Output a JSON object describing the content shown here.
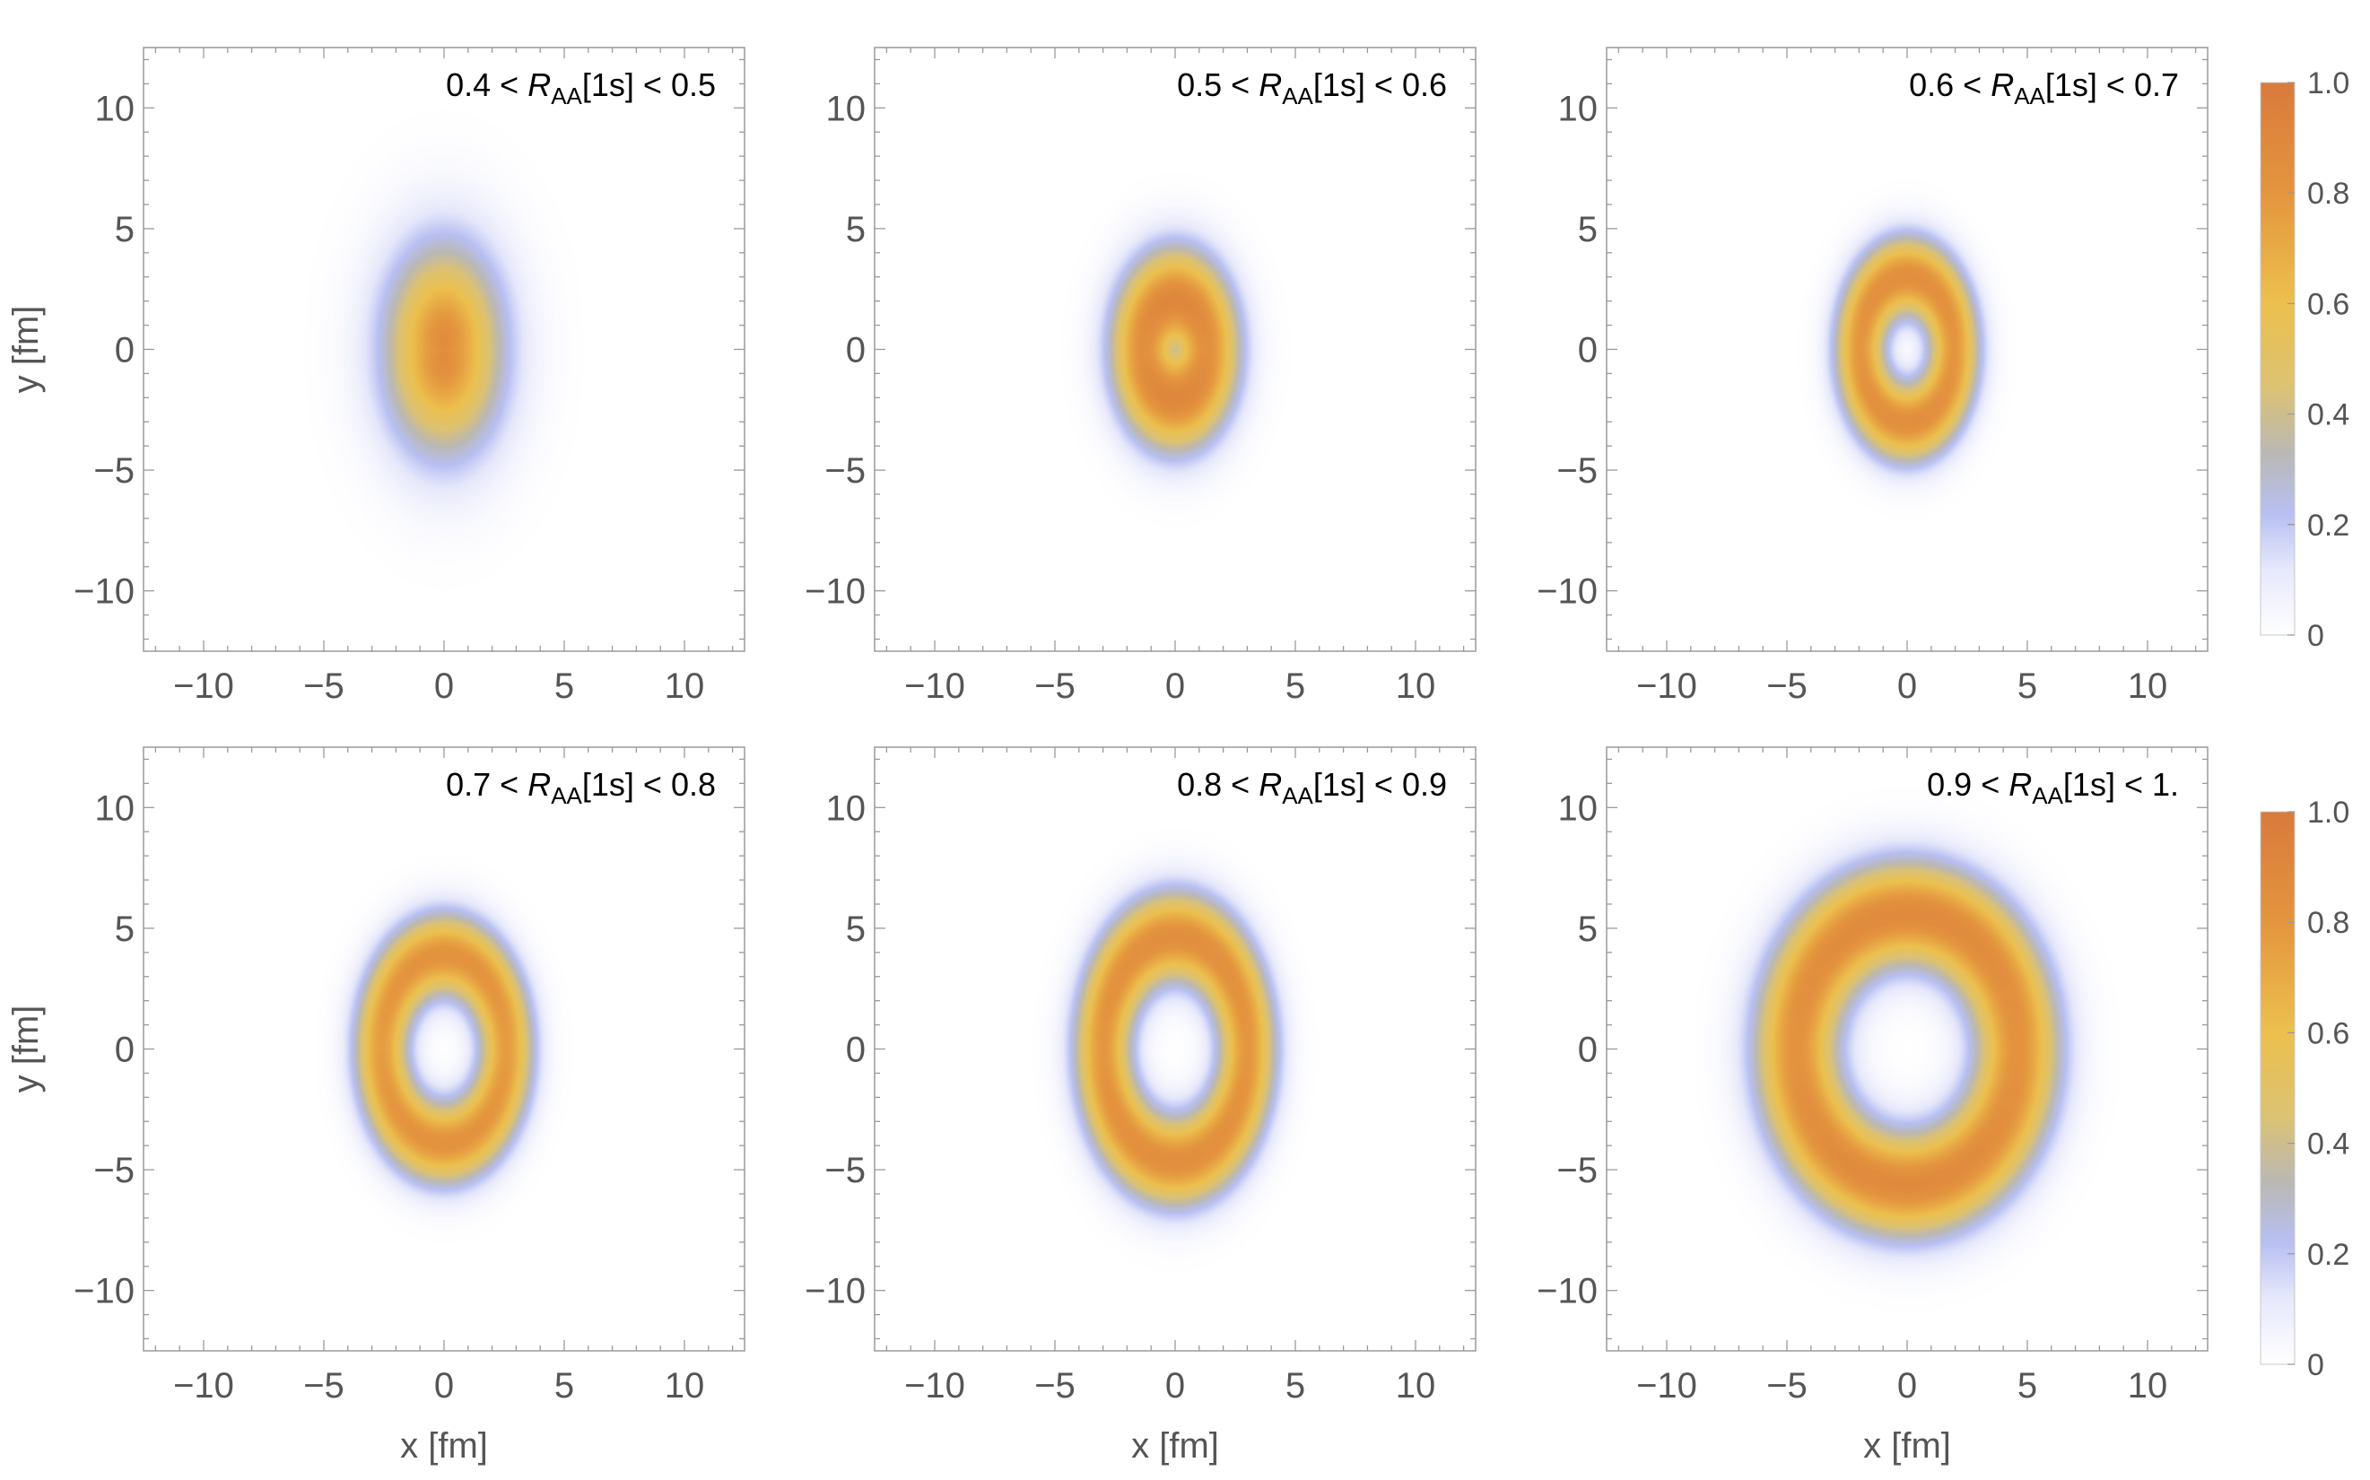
{
  "chart_data": {
    "type": "heatmap",
    "layout": "2 rows x 3 columns of density plots with colorbars",
    "x_axis": {
      "label": "x [fm]",
      "range": [
        -12.5,
        12.5
      ],
      "ticks": [
        -10,
        -5,
        0,
        5,
        10
      ],
      "tick_labels": [
        "−10",
        "−5",
        "0",
        "5",
        "10"
      ]
    },
    "y_axis": {
      "label": "y [fm]",
      "range": [
        -12.5,
        12.5
      ],
      "ticks": [
        -10,
        -5,
        0,
        5,
        10
      ],
      "tick_labels": [
        "−10",
        "−5",
        "0",
        "5",
        "10"
      ]
    },
    "colorbar": {
      "range": [
        0,
        1
      ],
      "tick_values": [
        0,
        0.2,
        0.4,
        0.6,
        0.8,
        1.0
      ],
      "tick_labels": [
        "0",
        "0.2",
        "0.4",
        "0.6",
        "0.8",
        "1.0"
      ],
      "gradient": [
        {
          "value": 0.0,
          "color": "#ffffff"
        },
        {
          "value": 0.12,
          "color": "#e6e8fb"
        },
        {
          "value": 0.22,
          "color": "#b8bff2"
        },
        {
          "value": 0.33,
          "color": "#bab8b4"
        },
        {
          "value": 0.45,
          "color": "#dcc272"
        },
        {
          "value": 0.6,
          "color": "#ecc04e"
        },
        {
          "value": 0.8,
          "color": "#e4953e"
        },
        {
          "value": 1.0,
          "color": "#d97a3c"
        }
      ]
    },
    "panels": [
      {
        "label": {
          "pre": "0.4 < ",
          "R": "R",
          "sub": "AA",
          "post": "[1s] < 0.5"
        },
        "ring_radius": 0.0,
        "ring_width": 1.7,
        "inner_peak": 0.88,
        "outer_peak": 0.88,
        "sx": 1.0,
        "sy": 1.7,
        "x_shift": 0.0
      },
      {
        "label": {
          "pre": "0.5 < ",
          "R": "R",
          "sub": "AA",
          "post": "[1s] < 0.6"
        },
        "ring_radius": 1.3,
        "ring_width": 1.0,
        "inner_peak": 0.9,
        "outer_peak": 0.9,
        "sx": 1.0,
        "sy": 1.55,
        "x_shift": 0.0
      },
      {
        "label": {
          "pre": "0.6 < ",
          "R": "R",
          "sub": "AA",
          "post": "[1s] < 0.7"
        },
        "ring_radius": 1.95,
        "ring_width": 0.75,
        "inner_peak": 0.85,
        "outer_peak": 0.85,
        "sx": 1.0,
        "sy": 1.55,
        "x_shift": 0.0
      },
      {
        "label": {
          "pre": "0.7 < ",
          "R": "R",
          "sub": "AA",
          "post": "[1s] < 0.8"
        },
        "ring_radius": 2.6,
        "ring_width": 0.8,
        "inner_peak": 0.82,
        "outer_peak": 0.82,
        "sx": 1.0,
        "sy": 1.5,
        "x_shift": 0.0
      },
      {
        "label": {
          "pre": "0.8 < ",
          "R": "R",
          "sub": "AA",
          "post": "[1s] < 0.9"
        },
        "ring_radius": 3.0,
        "ring_width": 0.85,
        "inner_peak": 0.85,
        "outer_peak": 0.85,
        "sx": 1.0,
        "sy": 1.55,
        "x_shift": 0.0
      },
      {
        "label": {
          "pre": "0.9 < ",
          "R": "R",
          "sub": "AA",
          "post": "[1s] < 1."
        },
        "ring_radius": 4.6,
        "ring_width": 1.25,
        "inner_peak": 0.88,
        "outer_peak": 0.88,
        "sx": 1.0,
        "sy": 1.22,
        "x_shift": 0.0
      }
    ]
  }
}
